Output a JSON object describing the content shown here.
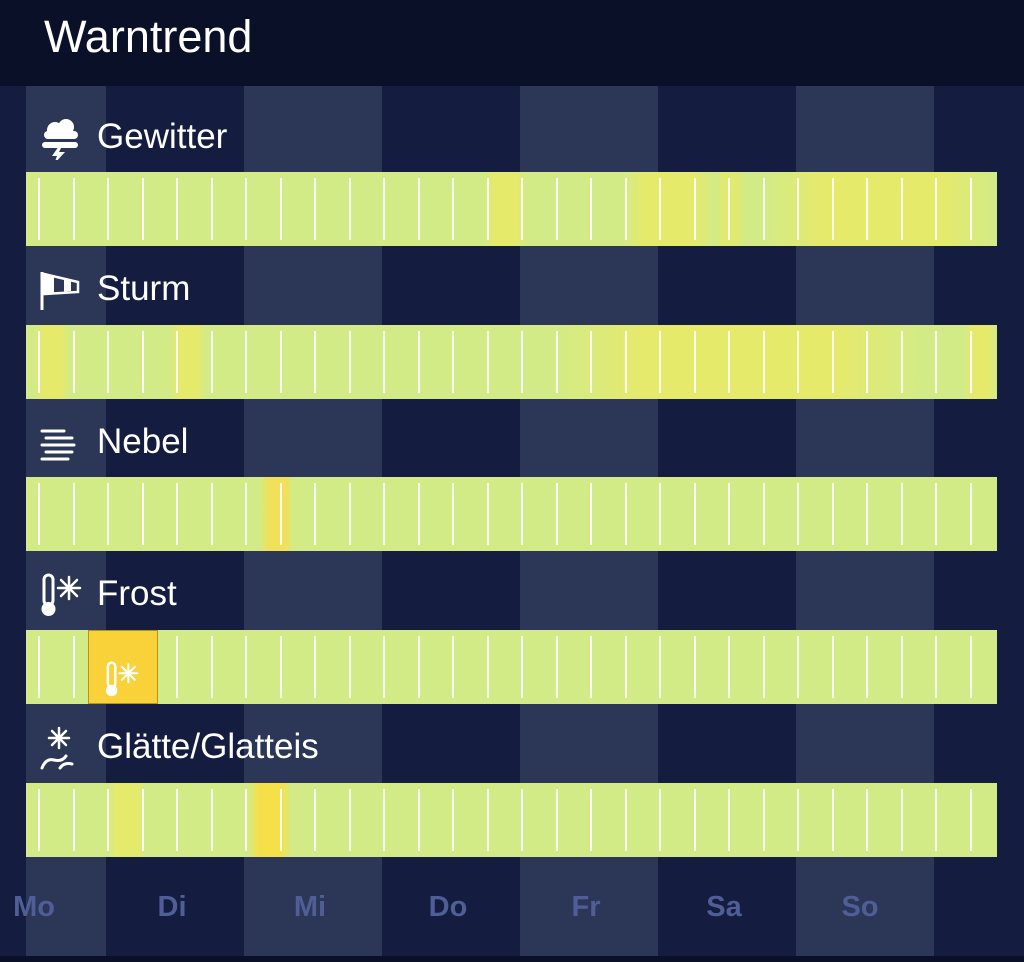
{
  "header": {
    "title": "Warntrend"
  },
  "days": [
    "Mo",
    "Di",
    "Mi",
    "Do",
    "Fr",
    "Sa",
    "So"
  ],
  "colors": {
    "header_bg": "#0b1029",
    "col_light": "#2c3758",
    "col_dark": "#141d3f",
    "day_label": "#4f5e96",
    "level_none": "#d2eb87",
    "level_low": "#e6ea6b",
    "level_mid": "#f5e04a",
    "level_high": "#f9d23a"
  },
  "categories": [
    {
      "label": "Gewitter",
      "icon": "thunderstorm-icon",
      "highlights": [
        {
          "from": 458,
          "to": 500,
          "color": "#e6ea6b"
        },
        {
          "from": 596,
          "to": 690,
          "color": "#e6ea6b"
        },
        {
          "from": 690,
          "to": 718,
          "color": "#e0ea70"
        },
        {
          "from": 740,
          "to": 971,
          "color": "#e6ea6b"
        }
      ]
    },
    {
      "label": "Sturm",
      "icon": "windsock-icon",
      "highlights": [
        {
          "from": 8,
          "to": 44,
          "color": "#e6ea6b"
        },
        {
          "from": 144,
          "to": 180,
          "color": "#e6ea6b"
        },
        {
          "from": 526,
          "to": 900,
          "color": "#e6ea6b"
        },
        {
          "from": 938,
          "to": 971,
          "color": "#e6ea6b"
        }
      ]
    },
    {
      "label": "Nebel",
      "icon": "fog-icon",
      "highlights": [
        {
          "from": 234,
          "to": 268,
          "color": "#f0e05a"
        }
      ]
    },
    {
      "label": "Frost",
      "icon": "frost-icon",
      "highlights": []
    },
    {
      "label": "Glätte/Glatteis",
      "icon": "black-ice-icon",
      "highlights": [
        {
          "from": 82,
          "to": 120,
          "color": "#e6ea6b"
        },
        {
          "from": 222,
          "to": 266,
          "color": "#f5e04a"
        }
      ]
    }
  ]
}
